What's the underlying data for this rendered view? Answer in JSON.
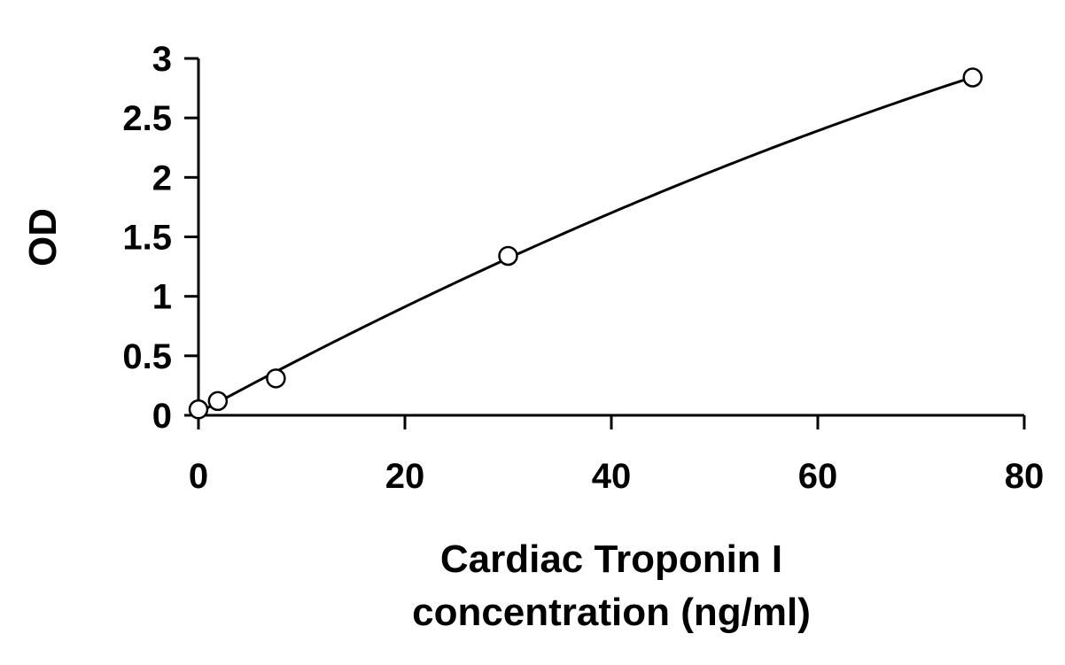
{
  "chart_data": {
    "type": "scatter",
    "title": "",
    "xlabel_lines": [
      "Cardiac Troponin I",
      "concentration (ng/ml)"
    ],
    "ylabel": "OD",
    "xlim": [
      0,
      80
    ],
    "ylim": [
      0,
      3
    ],
    "x_ticks": [
      0,
      20,
      40,
      60,
      80
    ],
    "y_ticks": [
      0,
      0.5,
      1,
      1.5,
      2,
      2.5,
      3
    ],
    "y_tick_labels": [
      "0",
      "0.5",
      "1",
      "1.5",
      "2",
      "2.5",
      "3"
    ],
    "x_tick_labels": [
      "0",
      "20",
      "40",
      "60",
      "80"
    ],
    "grid": false,
    "legend": "none",
    "series": [
      {
        "marker": "open-circle",
        "line": "smooth-fit",
        "color": "#000000",
        "x": [
          0,
          1.875,
          7.5,
          30,
          75
        ],
        "y": [
          0.05,
          0.12,
          0.31,
          1.34,
          2.84
        ]
      }
    ]
  }
}
